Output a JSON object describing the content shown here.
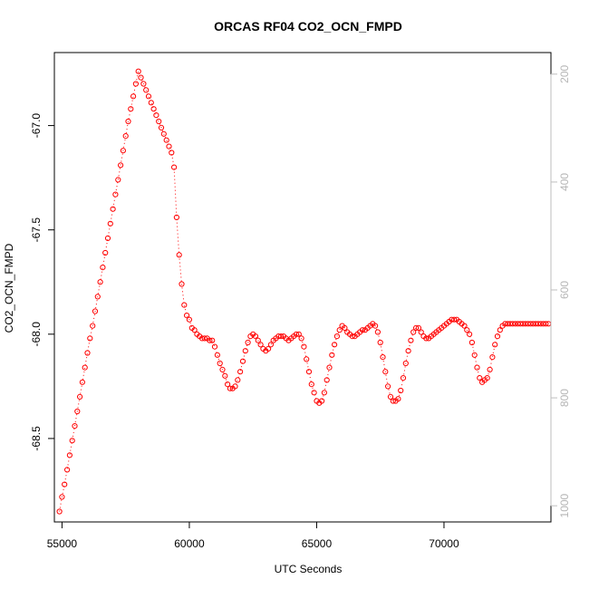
{
  "chart_data": {
    "type": "scatter",
    "title": "ORCAS RF04 CO2_OCN_FMPD",
    "xlabel": "UTC Seconds",
    "ylabel": "CO2_OCN_FMPD",
    "xlim": [
      54700,
      74200
    ],
    "ylim": [
      -68.9,
      -66.65
    ],
    "x_ticks": [
      55000,
      60000,
      65000,
      70000
    ],
    "x_tick_labels": [
      "55000",
      "60000",
      "65000",
      "70000"
    ],
    "y_ticks": [
      -67.0,
      -67.5,
      -68.0,
      -68.5
    ],
    "y_tick_labels": [
      "-67.0",
      "-67.5",
      "-68.0",
      "-68.5"
    ],
    "right_axis": {
      "label": "",
      "lim": [
        1030,
        160
      ],
      "reversed": true,
      "ticks": [
        200,
        400,
        600,
        800,
        1000
      ],
      "tick_labels": [
        "200",
        "400",
        "600",
        "800",
        "1000"
      ],
      "color": "#bebebe"
    },
    "grid": false,
    "legend": "none",
    "series": [
      {
        "role": "primary",
        "style": "points-with-dotted-line",
        "color": "#ff0000",
        "points": [
          [
            54900,
            -68.85
          ],
          [
            55000,
            -68.78
          ],
          [
            55100,
            -68.72
          ],
          [
            55200,
            -68.65
          ],
          [
            55300,
            -68.58
          ],
          [
            55400,
            -68.51
          ],
          [
            55500,
            -68.44
          ],
          [
            55600,
            -68.37
          ],
          [
            55700,
            -68.3
          ],
          [
            55800,
            -68.23
          ],
          [
            55900,
            -68.16
          ],
          [
            56000,
            -68.09
          ],
          [
            56100,
            -68.02
          ],
          [
            56200,
            -67.96
          ],
          [
            56300,
            -67.89
          ],
          [
            56400,
            -67.82
          ],
          [
            56500,
            -67.75
          ],
          [
            56600,
            -67.68
          ],
          [
            56700,
            -67.61
          ],
          [
            56800,
            -67.54
          ],
          [
            56900,
            -67.47
          ],
          [
            57000,
            -67.4
          ],
          [
            57100,
            -67.33
          ],
          [
            57200,
            -67.26
          ],
          [
            57300,
            -67.19
          ],
          [
            57400,
            -67.12
          ],
          [
            57500,
            -67.05
          ],
          [
            57600,
            -66.98
          ],
          [
            57700,
            -66.92
          ],
          [
            57800,
            -66.86
          ],
          [
            57900,
            -66.8
          ],
          [
            58000,
            -66.74
          ],
          [
            58100,
            -66.77
          ],
          [
            58200,
            -66.8
          ],
          [
            58300,
            -66.83
          ],
          [
            58400,
            -66.86
          ],
          [
            58500,
            -66.89
          ],
          [
            58600,
            -66.92
          ],
          [
            58700,
            -66.95
          ],
          [
            58800,
            -66.98
          ],
          [
            58900,
            -67.01
          ],
          [
            59000,
            -67.04
          ],
          [
            59100,
            -67.07
          ],
          [
            59200,
            -67.1
          ],
          [
            59300,
            -67.13
          ],
          [
            59400,
            -67.2
          ],
          [
            59500,
            -67.44
          ],
          [
            59600,
            -67.62
          ],
          [
            59700,
            -67.76
          ],
          [
            59800,
            -67.86
          ],
          [
            59900,
            -67.91
          ],
          [
            60000,
            -67.93
          ],
          [
            60100,
            -67.97
          ],
          [
            60200,
            -67.98
          ],
          [
            60300,
            -68.0
          ],
          [
            60400,
            -68.01
          ],
          [
            60500,
            -68.02
          ],
          [
            60600,
            -68.02
          ],
          [
            60700,
            -68.02
          ],
          [
            60800,
            -68.03
          ],
          [
            60900,
            -68.03
          ],
          [
            61000,
            -68.06
          ],
          [
            61100,
            -68.1
          ],
          [
            61200,
            -68.14
          ],
          [
            61300,
            -68.17
          ],
          [
            61400,
            -68.2
          ],
          [
            61500,
            -68.24
          ],
          [
            61600,
            -68.26
          ],
          [
            61700,
            -68.26
          ],
          [
            61800,
            -68.25
          ],
          [
            61900,
            -68.22
          ],
          [
            62000,
            -68.18
          ],
          [
            62100,
            -68.13
          ],
          [
            62200,
            -68.08
          ],
          [
            62300,
            -68.04
          ],
          [
            62400,
            -68.01
          ],
          [
            62500,
            -68.0
          ],
          [
            62600,
            -68.01
          ],
          [
            62700,
            -68.03
          ],
          [
            62800,
            -68.05
          ],
          [
            62900,
            -68.07
          ],
          [
            63000,
            -68.08
          ],
          [
            63100,
            -68.07
          ],
          [
            63200,
            -68.05
          ],
          [
            63300,
            -68.03
          ],
          [
            63400,
            -68.02
          ],
          [
            63500,
            -68.01
          ],
          [
            63600,
            -68.01
          ],
          [
            63700,
            -68.01
          ],
          [
            63800,
            -68.02
          ],
          [
            63900,
            -68.03
          ],
          [
            64000,
            -68.02
          ],
          [
            64100,
            -68.01
          ],
          [
            64200,
            -68.0
          ],
          [
            64300,
            -68.0
          ],
          [
            64400,
            -68.02
          ],
          [
            64500,
            -68.06
          ],
          [
            64600,
            -68.12
          ],
          [
            64700,
            -68.18
          ],
          [
            64800,
            -68.24
          ],
          [
            64900,
            -68.28
          ],
          [
            65000,
            -68.32
          ],
          [
            65100,
            -68.33
          ],
          [
            65200,
            -68.32
          ],
          [
            65300,
            -68.28
          ],
          [
            65400,
            -68.22
          ],
          [
            65500,
            -68.16
          ],
          [
            65600,
            -68.1
          ],
          [
            65700,
            -68.05
          ],
          [
            65800,
            -68.01
          ],
          [
            65900,
            -67.98
          ],
          [
            66000,
            -67.96
          ],
          [
            66100,
            -67.97
          ],
          [
            66200,
            -67.99
          ],
          [
            66300,
            -68.0
          ],
          [
            66400,
            -68.01
          ],
          [
            66500,
            -68.01
          ],
          [
            66600,
            -68.0
          ],
          [
            66700,
            -67.99
          ],
          [
            66800,
            -67.98
          ],
          [
            66900,
            -67.98
          ],
          [
            67000,
            -67.97
          ],
          [
            67100,
            -67.96
          ],
          [
            67200,
            -67.95
          ],
          [
            67300,
            -67.96
          ],
          [
            67400,
            -67.99
          ],
          [
            67500,
            -68.04
          ],
          [
            67600,
            -68.11
          ],
          [
            67700,
            -68.18
          ],
          [
            67800,
            -68.25
          ],
          [
            67900,
            -68.3
          ],
          [
            68000,
            -68.32
          ],
          [
            68100,
            -68.32
          ],
          [
            68200,
            -68.31
          ],
          [
            68300,
            -68.27
          ],
          [
            68400,
            -68.21
          ],
          [
            68500,
            -68.14
          ],
          [
            68600,
            -68.08
          ],
          [
            68700,
            -68.03
          ],
          [
            68800,
            -67.99
          ],
          [
            68900,
            -67.97
          ],
          [
            69000,
            -67.97
          ],
          [
            69100,
            -67.99
          ],
          [
            69200,
            -68.01
          ],
          [
            69300,
            -68.02
          ],
          [
            69400,
            -68.02
          ],
          [
            69500,
            -68.01
          ],
          [
            69600,
            -68.0
          ],
          [
            69700,
            -67.99
          ],
          [
            69800,
            -67.98
          ],
          [
            69900,
            -67.97
          ],
          [
            70000,
            -67.96
          ],
          [
            70100,
            -67.95
          ],
          [
            70200,
            -67.94
          ],
          [
            70300,
            -67.93
          ],
          [
            70400,
            -67.93
          ],
          [
            70500,
            -67.93
          ],
          [
            70600,
            -67.94
          ],
          [
            70700,
            -67.95
          ],
          [
            70800,
            -67.96
          ],
          [
            70900,
            -67.98
          ],
          [
            71000,
            -68.0
          ],
          [
            71100,
            -68.04
          ],
          [
            71200,
            -68.1
          ],
          [
            71300,
            -68.16
          ],
          [
            71400,
            -68.21
          ],
          [
            71500,
            -68.23
          ],
          [
            71600,
            -68.22
          ],
          [
            71700,
            -68.21
          ],
          [
            71800,
            -68.17
          ],
          [
            71900,
            -68.11
          ],
          [
            72000,
            -68.05
          ],
          [
            72100,
            -68.01
          ],
          [
            72200,
            -67.98
          ],
          [
            72300,
            -67.96
          ],
          [
            72400,
            -67.95
          ],
          [
            72500,
            -67.95
          ],
          [
            72600,
            -67.95
          ],
          [
            72700,
            -67.95
          ],
          [
            72800,
            -67.95
          ],
          [
            72900,
            -67.95
          ],
          [
            73000,
            -67.95
          ],
          [
            73100,
            -67.95
          ],
          [
            73200,
            -67.95
          ],
          [
            73300,
            -67.95
          ],
          [
            73400,
            -67.95
          ],
          [
            73500,
            -67.95
          ],
          [
            73600,
            -67.95
          ],
          [
            73700,
            -67.95
          ],
          [
            73800,
            -67.95
          ],
          [
            73900,
            -67.95
          ],
          [
            74000,
            -67.95
          ],
          [
            74100,
            -67.95
          ]
        ]
      },
      {
        "role": "secondary",
        "axis": "right",
        "style": "line",
        "color": "#bebebe",
        "points": []
      }
    ]
  }
}
